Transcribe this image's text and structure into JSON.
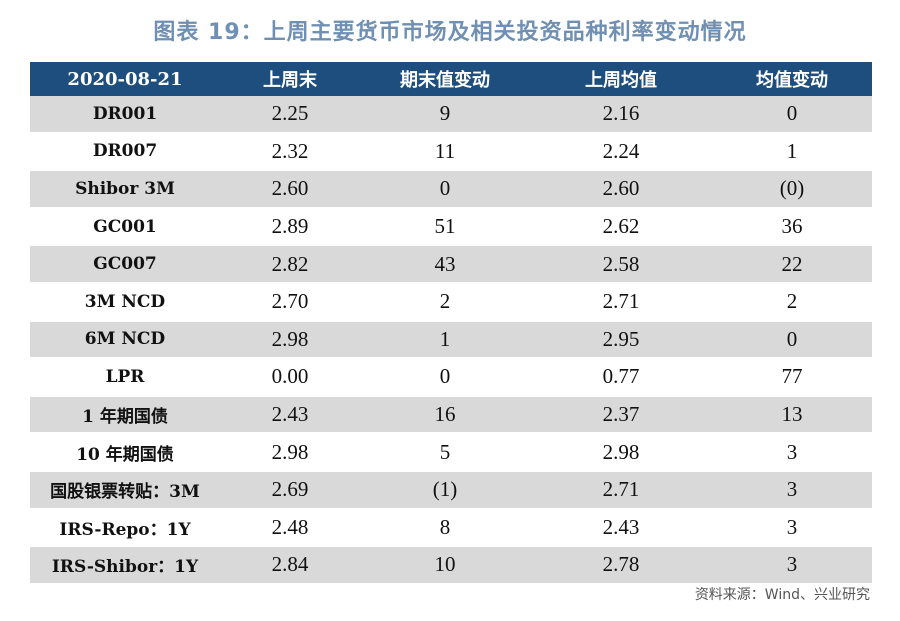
{
  "title": "图表 19：上周主要货币市场及相关投资品种利率变动情况",
  "table": {
    "headers": [
      "2020-08-21",
      "上周末",
      "期末值变动",
      "上周均值",
      "均值变动"
    ],
    "rows": [
      [
        "DR001",
        "2.25",
        "9",
        "2.16",
        "0"
      ],
      [
        "DR007",
        "2.32",
        "11",
        "2.24",
        "1"
      ],
      [
        "Shibor 3M",
        "2.60",
        "0",
        "2.60",
        "(0)"
      ],
      [
        "GC001",
        "2.89",
        "51",
        "2.62",
        "36"
      ],
      [
        "GC007",
        "2.82",
        "43",
        "2.58",
        "22"
      ],
      [
        "3M NCD",
        "2.70",
        "2",
        "2.71",
        "2"
      ],
      [
        "6M NCD",
        "2.98",
        "1",
        "2.95",
        "0"
      ],
      [
        "LPR",
        "0.00",
        "0",
        "0.77",
        "77"
      ],
      [
        "1 年期国债",
        "2.43",
        "16",
        "2.37",
        "13"
      ],
      [
        "10 年期国债",
        "2.98",
        "5",
        "2.98",
        "3"
      ],
      [
        "国股银票转贴：3M",
        "2.69",
        "(1)",
        "2.71",
        "3"
      ],
      [
        "IRS-Repo：1Y",
        "2.48",
        "8",
        "2.43",
        "3"
      ],
      [
        "IRS-Shibor：1Y",
        "2.84",
        "10",
        "2.78",
        "3"
      ]
    ]
  },
  "source": "资料来源：Wind、兴业研究",
  "colors": {
    "title": "#6f8fb3",
    "header_bg": "#1e4e7d",
    "row_alt_bg": "#d9d9d9"
  }
}
